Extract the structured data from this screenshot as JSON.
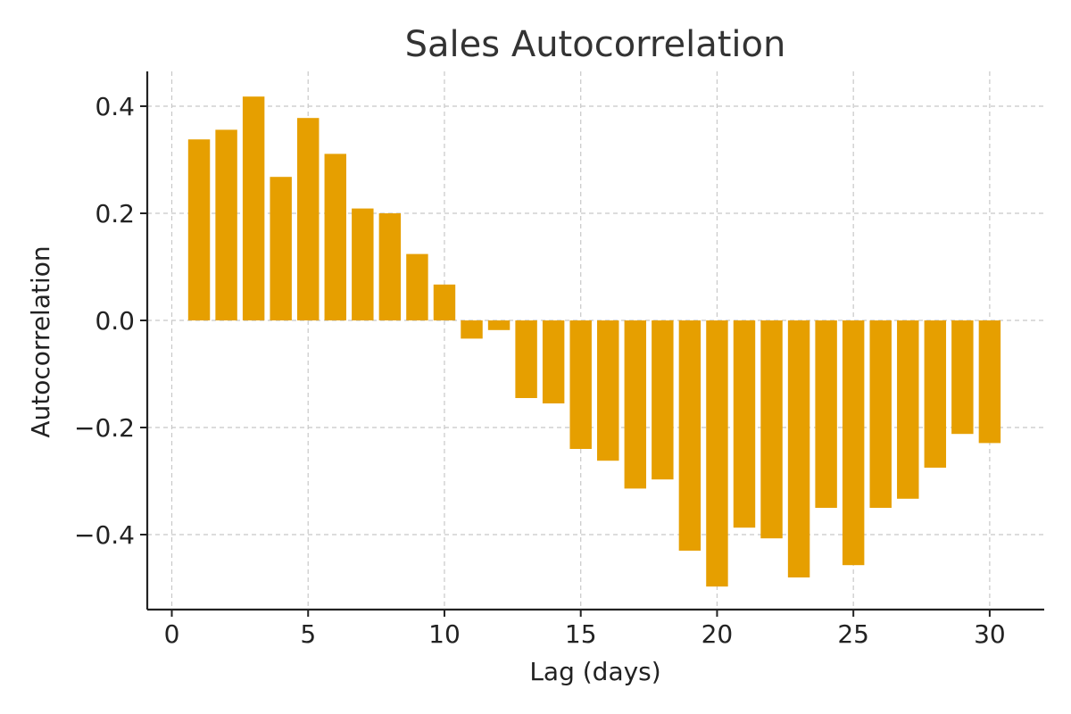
{
  "chart_data": {
    "type": "bar",
    "title": "Sales Autocorrelation",
    "xlabel": "Lag (days)",
    "ylabel": "Autocorrelation",
    "x": [
      1,
      2,
      3,
      4,
      5,
      6,
      7,
      8,
      9,
      10,
      11,
      12,
      13,
      14,
      15,
      16,
      17,
      18,
      19,
      20,
      21,
      22,
      23,
      24,
      25,
      26,
      27,
      28,
      29,
      30
    ],
    "values": [
      0.338,
      0.356,
      0.418,
      0.268,
      0.378,
      0.311,
      0.209,
      0.2,
      0.124,
      0.067,
      -0.034,
      -0.018,
      -0.145,
      -0.155,
      -0.24,
      -0.262,
      -0.314,
      -0.297,
      -0.43,
      -0.497,
      -0.387,
      -0.407,
      -0.48,
      -0.35,
      -0.457,
      -0.35,
      -0.333,
      -0.275,
      -0.212,
      -0.229
    ],
    "xlim": [
      -0.9,
      32
    ],
    "ylim": [
      -0.54,
      0.465
    ],
    "xticks": [
      0,
      5,
      10,
      15,
      20,
      25,
      30
    ],
    "xtick_labels": [
      "0",
      "5",
      "10",
      "15",
      "20",
      "25",
      "30"
    ],
    "yticks": [
      0.4,
      0.2,
      0.0,
      -0.2,
      -0.4
    ],
    "ytick_labels": [
      "0.4",
      "0.2",
      "0.0",
      "−0.2",
      "−0.4"
    ],
    "grid": true,
    "bar_color": "#E69F00"
  }
}
